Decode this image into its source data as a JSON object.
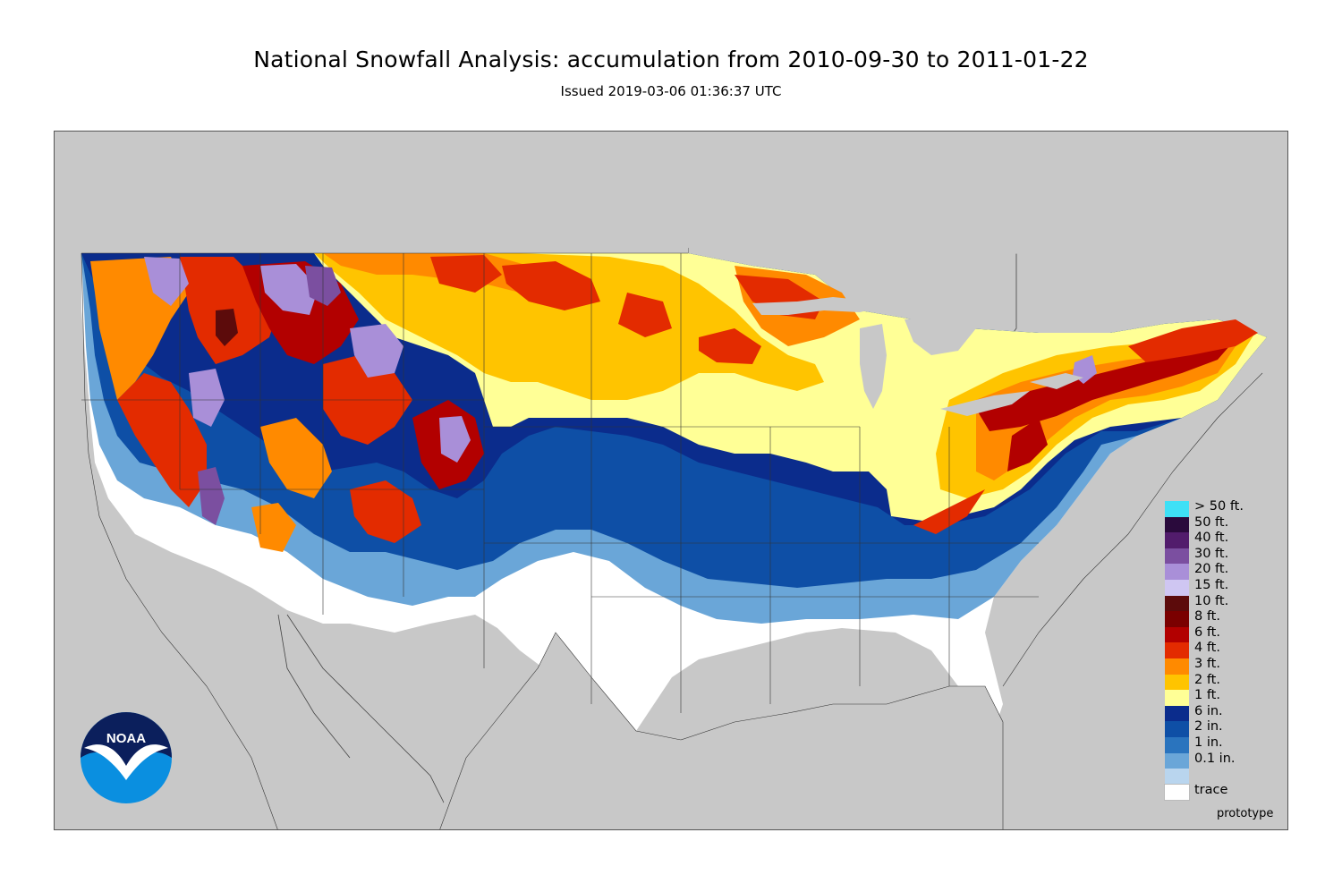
{
  "title": "National Snowfall Analysis: accumulation from 2010-09-30 to 2011-01-22",
  "subtitle": "Issued 2019-03-06 01:36:37 UTC",
  "logo_text": "NOAA",
  "footnote": "prototype",
  "legend": [
    {
      "label": "> 50 ft.",
      "color": "#3ee0f6"
    },
    {
      "label": "50 ft.",
      "color": "#2a0a3c"
    },
    {
      "label": "40 ft.",
      "color": "#521c6c"
    },
    {
      "label": "30 ft.",
      "color": "#7b4fa0"
    },
    {
      "label": "20 ft.",
      "color": "#a98fd8"
    },
    {
      "label": "15 ft.",
      "color": "#cfc6f2"
    },
    {
      "label": "10 ft.",
      "color": "#5c0b0b"
    },
    {
      "label": "8 ft.",
      "color": "#7a0000"
    },
    {
      "label": "6 ft.",
      "color": "#b20000"
    },
    {
      "label": "4 ft.",
      "color": "#e32b00"
    },
    {
      "label": "3 ft.",
      "color": "#ff8a00"
    },
    {
      "label": "2 ft.",
      "color": "#ffc400"
    },
    {
      "label": "1 ft.",
      "color": "#ffff96"
    },
    {
      "label": "6 in.",
      "color": "#0b2c8c"
    },
    {
      "label": "2 in.",
      "color": "#0e4fa6"
    },
    {
      "label": "1 in.",
      "color": "#2a74be"
    },
    {
      "label": "0.1 in.",
      "color": "#6aa6d8"
    },
    {
      "label": "",
      "color": "#b9d5ee"
    },
    {
      "label": "trace",
      "color": "#ffffff"
    }
  ],
  "colors": {
    "background_land": "#c8c8c8",
    "no_snow": "#ffffff"
  }
}
